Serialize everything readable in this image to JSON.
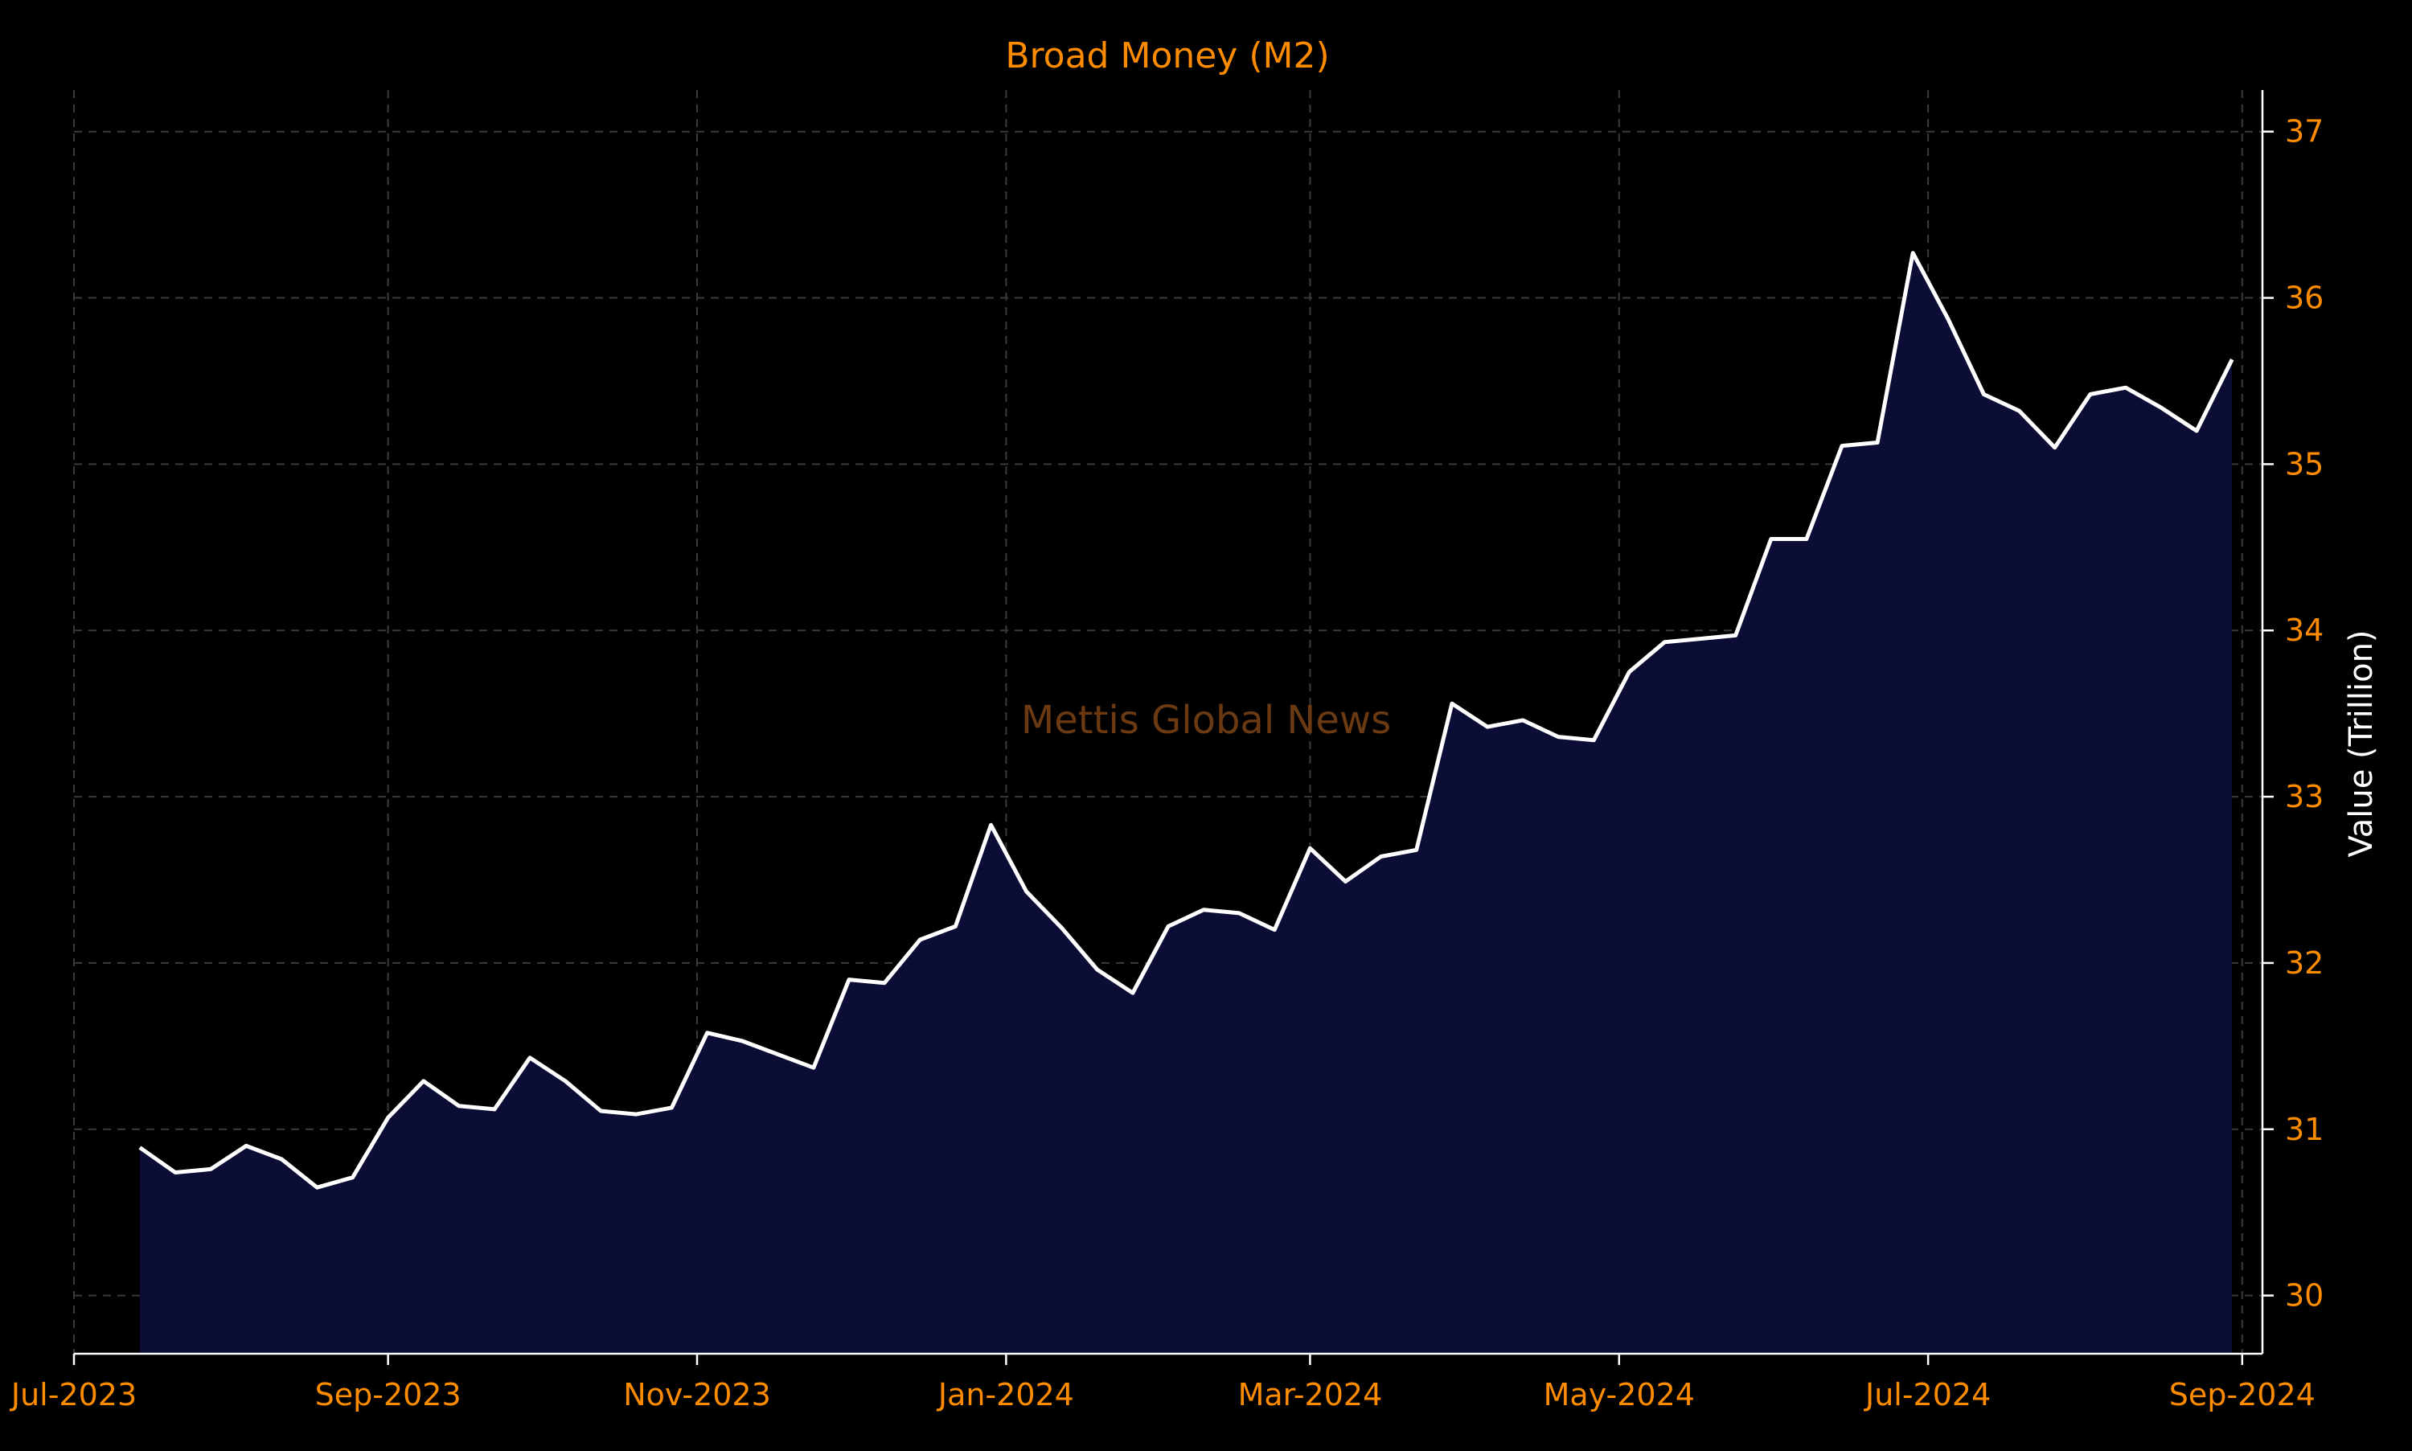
{
  "colors": {
    "background": "#000000",
    "accent_orange": "#ff8c00",
    "line": "#ffffff",
    "fill": "#0b0d36",
    "grid": "#3a3a3a",
    "axis": "#ffffff",
    "watermark": "#6b3a12"
  },
  "watermark": "Mettis Global News",
  "chart_data": {
    "type": "area",
    "title": "Broad Money (M2)",
    "xlabel": "",
    "ylabel": "Value (Trillion)",
    "y_axis_side": "right",
    "grid": true,
    "grid_style": "dashed",
    "xlim": [
      "2023-07-01",
      "2024-09-05"
    ],
    "ylim": [
      29.65,
      37.25
    ],
    "y_ticks": [
      30,
      31,
      32,
      33,
      34,
      35,
      36,
      37
    ],
    "x_ticks": [
      {
        "date": "2023-07-01",
        "label": "Jul-2023"
      },
      {
        "date": "2023-09-01",
        "label": "Sep-2023"
      },
      {
        "date": "2023-11-01",
        "label": "Nov-2023"
      },
      {
        "date": "2024-01-01",
        "label": "Jan-2024"
      },
      {
        "date": "2024-03-01",
        "label": "Mar-2024"
      },
      {
        "date": "2024-05-01",
        "label": "May-2024"
      },
      {
        "date": "2024-07-01",
        "label": "Jul-2024"
      },
      {
        "date": "2024-09-01",
        "label": "Sep-2024"
      }
    ],
    "series": [
      {
        "x": [
          "2023-07-14",
          "2023-07-21",
          "2023-07-28",
          "2023-08-04",
          "2023-08-11",
          "2023-08-18",
          "2023-08-25",
          "2023-09-01",
          "2023-09-08",
          "2023-09-15",
          "2023-09-22",
          "2023-09-29",
          "2023-10-06",
          "2023-10-13",
          "2023-10-20",
          "2023-10-27",
          "2023-11-03",
          "2023-11-10",
          "2023-11-17",
          "2023-11-24",
          "2023-12-01",
          "2023-12-08",
          "2023-12-15",
          "2023-12-22",
          "2023-12-29",
          "2024-01-05",
          "2024-01-12",
          "2024-01-19",
          "2024-01-26",
          "2024-02-02",
          "2024-02-09",
          "2024-02-16",
          "2024-02-23",
          "2024-03-01",
          "2024-03-08",
          "2024-03-15",
          "2024-03-22",
          "2024-03-29",
          "2024-04-05",
          "2024-04-12",
          "2024-04-19",
          "2024-04-26",
          "2024-05-03",
          "2024-05-10",
          "2024-05-17",
          "2024-05-24",
          "2024-05-31",
          "2024-06-07",
          "2024-06-14",
          "2024-06-21",
          "2024-06-28",
          "2024-07-05",
          "2024-07-12",
          "2024-07-19",
          "2024-07-26",
          "2024-08-02",
          "2024-08-09",
          "2024-08-16",
          "2024-08-23",
          "2024-08-30"
        ],
        "y": [
          30.89,
          30.74,
          30.76,
          30.9,
          30.82,
          30.65,
          30.71,
          31.07,
          31.29,
          31.14,
          31.12,
          31.43,
          31.29,
          31.11,
          31.09,
          31.13,
          31.58,
          31.53,
          31.45,
          31.37,
          31.9,
          31.88,
          32.14,
          32.22,
          32.83,
          32.43,
          32.21,
          31.96,
          31.82,
          32.22,
          32.32,
          32.3,
          32.2,
          32.69,
          32.49,
          32.64,
          32.68,
          33.56,
          33.42,
          33.46,
          33.36,
          33.34,
          33.75,
          33.93,
          33.95,
          33.97,
          34.55,
          34.55,
          35.11,
          35.13,
          36.27,
          35.87,
          35.42,
          35.32,
          35.1,
          35.42,
          35.46,
          35.34,
          35.2,
          35.63
        ]
      }
    ]
  }
}
